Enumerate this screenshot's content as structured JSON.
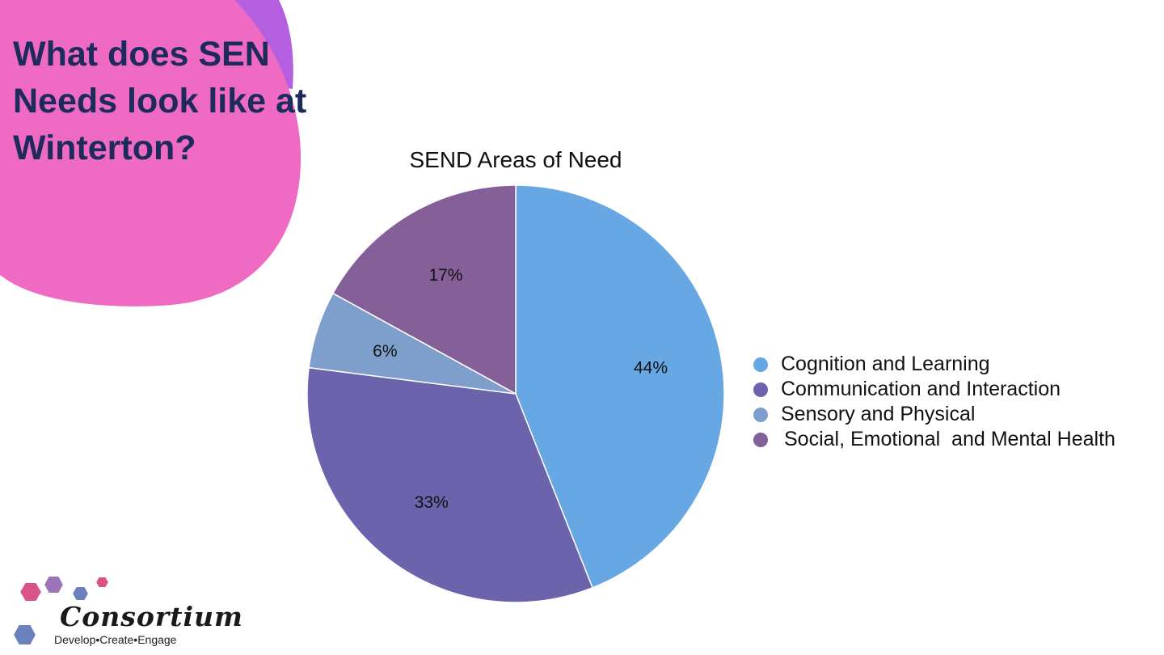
{
  "slide": {
    "title_lines": [
      "What does SEN",
      "Needs look like at",
      "Winterton?"
    ]
  },
  "colors": {
    "blob_pink": "#ef6bc3",
    "blob_purple": "#b35fdf",
    "title_text": "#1c2a5c",
    "slice_border": "#ffffff"
  },
  "chart_data": {
    "type": "pie",
    "title": "SEND Areas of Need",
    "slices": [
      {
        "label": "Cognition and Learning",
        "value": 44,
        "display": "44%",
        "color": "#67a7e3"
      },
      {
        "label": "Communication and Interaction",
        "value": 33,
        "display": "33%",
        "color": "#6b63ab"
      },
      {
        "label": "Sensory and Physical",
        "value": 6,
        "display": "6%",
        "color": "#7e9fcc"
      },
      {
        "label": "Social, Emotional  and Mental Health",
        "value": 17,
        "display": "17%",
        "color": "#845f98"
      }
    ],
    "start": "12 o'clock, clockwise",
    "legend_position": "right"
  },
  "logo": {
    "name": "Consortium",
    "tagline": "Develop•Create•Engage",
    "hex_colors": [
      "#d9538a",
      "#9d74b8",
      "#6c80bd"
    ]
  }
}
